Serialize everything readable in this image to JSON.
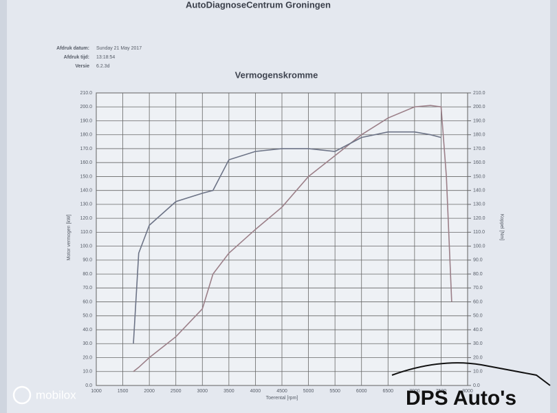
{
  "header": {
    "company": "AutoDiagnoseCentrum Groningen",
    "fields": [
      [
        "Afdruk datum:",
        "Sunday 21 May 2017"
      ],
      [
        "Afdruk tijd:",
        "13:18:54"
      ],
      [
        "Versie",
        "6.2.3d"
      ]
    ]
  },
  "watermark": "mobilox",
  "logo": "DPS Auto's",
  "chart_data": {
    "type": "line",
    "title": "Vermogenskromme",
    "x_label": "Toerental [rpm]",
    "y_label": "Motor vermogen [kW]",
    "y2_label": "Koppel [Nm]",
    "x": [
      1700,
      1800,
      2000,
      2500,
      3000,
      3200,
      3500,
      4000,
      4500,
      5000,
      5500,
      6000,
      6500,
      7000,
      7300,
      7500,
      7600,
      7700
    ],
    "series": [
      {
        "name": "Vermogen",
        "color": "#9b7f88",
        "values": [
          10,
          13,
          20,
          35,
          55,
          80,
          95,
          112,
          128,
          150,
          165,
          180,
          192,
          200,
          201,
          200,
          150,
          60
        ]
      },
      {
        "name": "Koppel",
        "color": "#6c7386",
        "axis": "y2",
        "values": [
          30,
          95,
          115,
          132,
          138,
          140,
          162,
          168,
          170,
          170,
          168,
          178,
          182,
          182,
          180,
          178,
          null,
          null
        ]
      }
    ],
    "xlim": [
      1000,
      8000
    ],
    "xticks": [
      1000,
      1500,
      2000,
      2500,
      3000,
      3500,
      4000,
      4500,
      5000,
      5500,
      6000,
      6500,
      7000,
      7500,
      8000
    ],
    "ylim": [
      0,
      210
    ],
    "yticks": [
      {
        "value": 0,
        "label": "0.0"
      },
      {
        "value": 10,
        "label": "10.0"
      },
      {
        "value": 20,
        "label": "20.0"
      },
      {
        "value": 30,
        "label": "30.0"
      },
      {
        "value": 40,
        "label": "40.0"
      },
      {
        "value": 50,
        "label": "50.0"
      },
      {
        "value": 60,
        "label": "60.0"
      },
      {
        "value": 70,
        "label": "70.0"
      },
      {
        "value": 80,
        "label": "80.0"
      },
      {
        "value": 90,
        "label": "90.0"
      },
      {
        "value": 100,
        "label": "100.0"
      },
      {
        "value": 110,
        "label": "110.0"
      },
      {
        "value": 120,
        "label": "120.0"
      },
      {
        "value": 130,
        "label": "130.0"
      },
      {
        "value": 140,
        "label": "140.0"
      },
      {
        "value": 150,
        "label": "150.0"
      },
      {
        "value": 160,
        "label": "160.0"
      },
      {
        "value": 170,
        "label": "170.0"
      },
      {
        "value": 180,
        "label": "180.0"
      },
      {
        "value": 190,
        "label": "190.0"
      },
      {
        "value": 200,
        "label": "200.0"
      },
      {
        "value": 210,
        "label": "210.0"
      }
    ],
    "y2lim": [
      0,
      210
    ],
    "y2ticks": [
      {
        "value": 0,
        "label": "0.0"
      },
      {
        "value": 10,
        "label": "10.0"
      },
      {
        "value": 20,
        "label": "20.0"
      },
      {
        "value": 30,
        "label": "30.0"
      },
      {
        "value": 40,
        "label": "40.0"
      },
      {
        "value": 50,
        "label": "50.0"
      },
      {
        "value": 60,
        "label": "60.0"
      },
      {
        "value": 70,
        "label": "70.0"
      },
      {
        "value": 80,
        "label": "80.0"
      },
      {
        "value": 90,
        "label": "90.0"
      },
      {
        "value": 100,
        "label": "100.0"
      },
      {
        "value": 110,
        "label": "110.0"
      },
      {
        "value": 120,
        "label": "120.0"
      },
      {
        "value": 130,
        "label": "130.0"
      },
      {
        "value": 140,
        "label": "140.0"
      },
      {
        "value": 150,
        "label": "150.0"
      },
      {
        "value": 160,
        "label": "160.0"
      },
      {
        "value": 170,
        "label": "170.0"
      },
      {
        "value": 180,
        "label": "180.0"
      },
      {
        "value": 190,
        "label": "190.0"
      },
      {
        "value": 200,
        "label": "200.0"
      },
      {
        "value": 210,
        "label": "210.0"
      }
    ],
    "grid": true
  }
}
